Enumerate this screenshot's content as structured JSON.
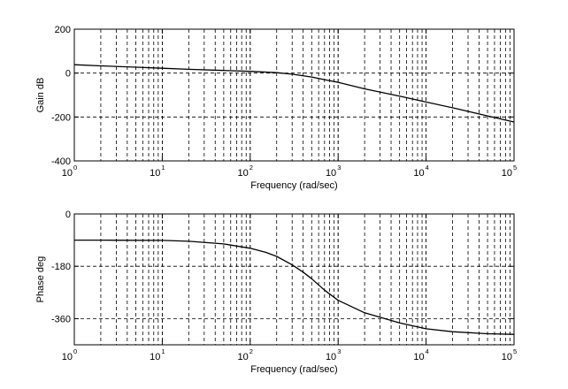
{
  "chart_data": [
    {
      "type": "line",
      "title": "",
      "xlabel": "Frequency (rad/sec)",
      "ylabel": "Gain dB",
      "x_scale": "log",
      "xlim": [
        1,
        100000
      ],
      "ylim": [
        -400,
        200
      ],
      "grid": true,
      "x_tick_labels": [
        {
          "base": "10",
          "exp": "0"
        },
        {
          "base": "10",
          "exp": "1"
        },
        {
          "base": "10",
          "exp": "2"
        },
        {
          "base": "10",
          "exp": "3"
        },
        {
          "base": "10",
          "exp": "4"
        },
        {
          "base": "10",
          "exp": "5"
        }
      ],
      "y_ticks": [
        200,
        0,
        -200,
        -400
      ],
      "y_tick_labels": [
        "200",
        "0",
        "-200",
        "-400"
      ],
      "series": [
        {
          "x": [
            1,
            2,
            5,
            10,
            20,
            50,
            100,
            200,
            300,
            500,
            700,
            1000,
            2000,
            5000,
            10000,
            20000,
            50000,
            100000
          ],
          "y": [
            38,
            33,
            27,
            22,
            17,
            12,
            8,
            2,
            -5,
            -18,
            -30,
            -42,
            -72,
            -105,
            -132,
            -158,
            -195,
            -223
          ]
        }
      ],
      "color": "#000000"
    },
    {
      "type": "line",
      "title": "",
      "xlabel": "Frequency (rad/sec)",
      "ylabel": "Phase deg",
      "x_scale": "log",
      "xlim": [
        1,
        100000
      ],
      "ylim": [
        -450,
        0
      ],
      "grid": true,
      "x_tick_labels": [
        {
          "base": "10",
          "exp": "0"
        },
        {
          "base": "10",
          "exp": "1"
        },
        {
          "base": "10",
          "exp": "2"
        },
        {
          "base": "10",
          "exp": "3"
        },
        {
          "base": "10",
          "exp": "4"
        },
        {
          "base": "10",
          "exp": "5"
        }
      ],
      "y_ticks": [
        0,
        -180,
        -360
      ],
      "y_tick_labels": [
        "0",
        "-180",
        "-360"
      ],
      "series": [
        {
          "x": [
            1,
            2,
            5,
            10,
            20,
            50,
            100,
            150,
            200,
            300,
            400,
            500,
            700,
            1000,
            2000,
            5000,
            10000,
            20000,
            50000,
            100000
          ],
          "y": [
            -90,
            -90,
            -90.5,
            -91,
            -94,
            -103,
            -118,
            -132,
            -146,
            -175,
            -200,
            -223,
            -262,
            -297,
            -340,
            -375,
            -395,
            -405,
            -412,
            -414
          ]
        }
      ],
      "color": "#000000"
    }
  ]
}
